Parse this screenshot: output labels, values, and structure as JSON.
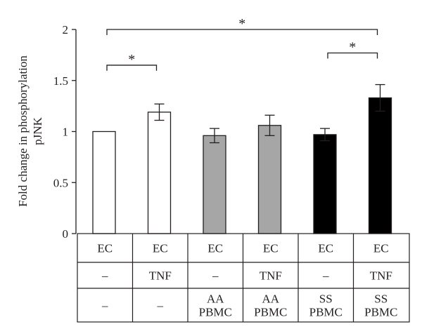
{
  "chart_data": {
    "type": "bar",
    "ylabel_lines": [
      "Fold change in phosphorylation",
      "pJNK"
    ],
    "ylim": [
      0,
      2
    ],
    "yticks": [
      "0",
      "0.5",
      "1",
      "1.5",
      "2"
    ],
    "grid": false,
    "bars": [
      {
        "value": 1.0,
        "error": 0.0,
        "fill": "#ffffff"
      },
      {
        "value": 1.19,
        "error": 0.08,
        "fill": "#ffffff"
      },
      {
        "value": 0.96,
        "error": 0.07,
        "fill": "#a6a6a6"
      },
      {
        "value": 1.06,
        "error": 0.1,
        "fill": "#a6a6a6"
      },
      {
        "value": 0.97,
        "error": 0.06,
        "fill": "#000000"
      },
      {
        "value": 1.33,
        "error": 0.13,
        "fill": "#000000"
      }
    ],
    "significance": [
      {
        "from": 0,
        "to": 1,
        "label": "*",
        "level": 1.65
      },
      {
        "from": 0,
        "to": 5,
        "label": "*",
        "level": 2.0
      },
      {
        "from": 4,
        "to": 5,
        "label": "*",
        "level": 1.77
      }
    ],
    "table": [
      [
        "EC",
        "EC",
        "EC",
        "EC",
        "EC",
        "EC"
      ],
      [
        "–",
        "TNF",
        "–",
        "TNF",
        "–",
        "TNF"
      ],
      [
        "–",
        "–",
        "AA\nPBMC",
        "AA\nPBMC",
        "SS\nPBMC",
        "SS\nPBMC"
      ]
    ]
  }
}
